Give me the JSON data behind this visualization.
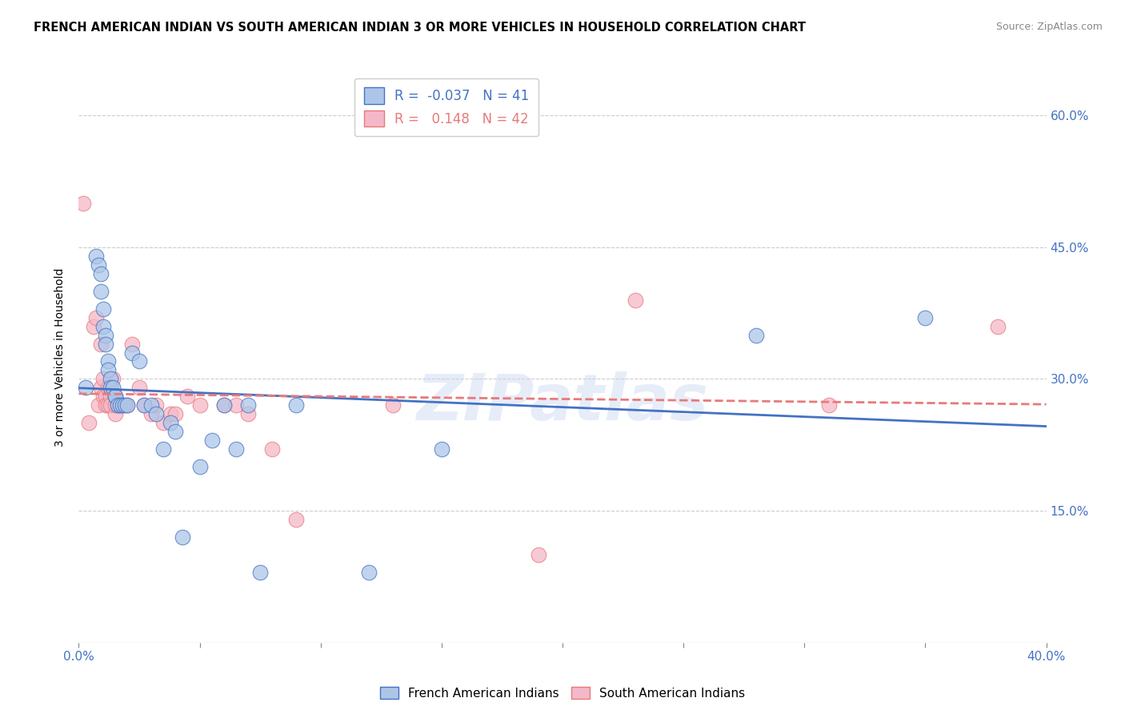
{
  "title": "FRENCH AMERICAN INDIAN VS SOUTH AMERICAN INDIAN 3 OR MORE VEHICLES IN HOUSEHOLD CORRELATION CHART",
  "source": "Source: ZipAtlas.com",
  "ylabel": "3 or more Vehicles in Household",
  "xlim": [
    0.0,
    0.4
  ],
  "ylim": [
    0.0,
    0.65
  ],
  "xticks": [
    0.0,
    0.05,
    0.1,
    0.15,
    0.2,
    0.25,
    0.3,
    0.35,
    0.4
  ],
  "xticklabels": [
    "0.0%",
    "",
    "",
    "",
    "",
    "",
    "",
    "",
    "40.0%"
  ],
  "yticks_right": [
    0.0,
    0.15,
    0.3,
    0.45,
    0.6
  ],
  "yticklabels_right": [
    "",
    "15.0%",
    "30.0%",
    "45.0%",
    "60.0%"
  ],
  "blue_R": -0.037,
  "blue_N": 41,
  "pink_R": 0.148,
  "pink_N": 42,
  "blue_color": "#adc6e8",
  "pink_color": "#f5b8c8",
  "blue_line_color": "#4472c4",
  "pink_line_color": "#e87a7a",
  "legend_label_blue": "French American Indians",
  "legend_label_pink": "South American Indians",
  "blue_x": [
    0.003,
    0.007,
    0.008,
    0.009,
    0.009,
    0.01,
    0.01,
    0.011,
    0.011,
    0.012,
    0.012,
    0.013,
    0.013,
    0.014,
    0.015,
    0.015,
    0.016,
    0.017,
    0.018,
    0.019,
    0.02,
    0.022,
    0.025,
    0.027,
    0.03,
    0.032,
    0.035,
    0.038,
    0.04,
    0.043,
    0.05,
    0.055,
    0.06,
    0.065,
    0.07,
    0.075,
    0.09,
    0.12,
    0.15,
    0.28,
    0.35
  ],
  "blue_y": [
    0.29,
    0.44,
    0.43,
    0.42,
    0.4,
    0.38,
    0.36,
    0.35,
    0.34,
    0.32,
    0.31,
    0.3,
    0.29,
    0.29,
    0.28,
    0.28,
    0.27,
    0.27,
    0.27,
    0.27,
    0.27,
    0.33,
    0.32,
    0.27,
    0.27,
    0.26,
    0.22,
    0.25,
    0.24,
    0.12,
    0.2,
    0.23,
    0.27,
    0.22,
    0.27,
    0.08,
    0.27,
    0.08,
    0.22,
    0.35,
    0.37
  ],
  "pink_x": [
    0.002,
    0.004,
    0.006,
    0.007,
    0.008,
    0.009,
    0.009,
    0.01,
    0.01,
    0.011,
    0.011,
    0.012,
    0.012,
    0.013,
    0.013,
    0.014,
    0.015,
    0.015,
    0.016,
    0.017,
    0.018,
    0.02,
    0.022,
    0.025,
    0.027,
    0.03,
    0.032,
    0.035,
    0.038,
    0.04,
    0.045,
    0.05,
    0.06,
    0.065,
    0.07,
    0.08,
    0.09,
    0.13,
    0.19,
    0.23,
    0.31,
    0.38
  ],
  "pink_y": [
    0.5,
    0.25,
    0.36,
    0.37,
    0.27,
    0.34,
    0.29,
    0.28,
    0.3,
    0.28,
    0.27,
    0.27,
    0.29,
    0.28,
    0.27,
    0.3,
    0.26,
    0.27,
    0.27,
    0.27,
    0.27,
    0.27,
    0.34,
    0.29,
    0.27,
    0.26,
    0.27,
    0.25,
    0.26,
    0.26,
    0.28,
    0.27,
    0.27,
    0.27,
    0.26,
    0.22,
    0.14,
    0.27,
    0.1,
    0.39,
    0.27,
    0.36
  ]
}
